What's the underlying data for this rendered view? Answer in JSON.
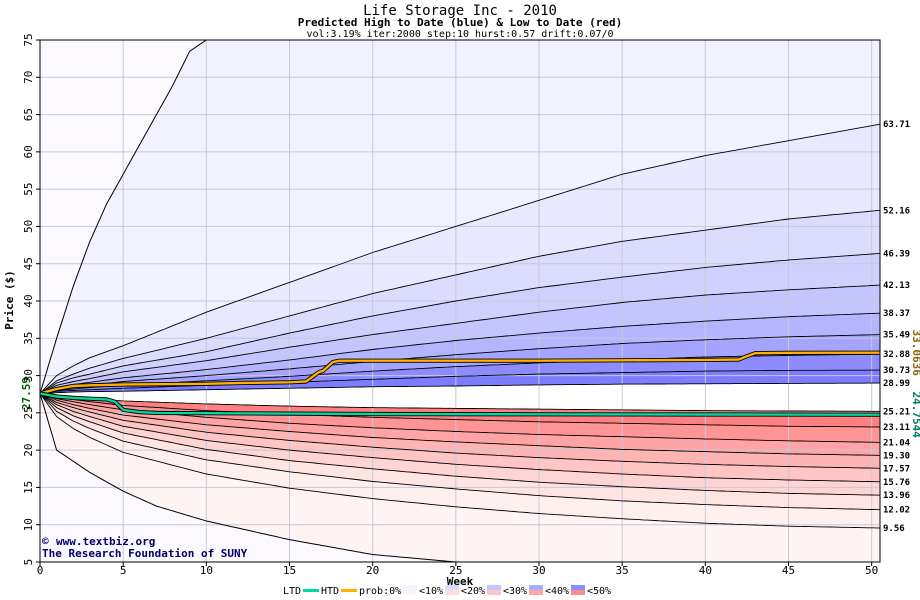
{
  "chart_data": {
    "type": "area",
    "title": "Life Storage Inc - 2010",
    "subtitle": "Predicted High to Date (blue) &  Low to Date (red)",
    "params": "vol:3.19% iter:2000 step:10 hurst:0.57 drift:0.07/0",
    "xlabel": "Week",
    "ylabel": "Price ($)",
    "xlim": [
      0,
      50.5
    ],
    "ylim": [
      5,
      75
    ],
    "xticks": [
      0,
      5,
      10,
      15,
      20,
      25,
      30,
      35,
      40,
      45,
      50
    ],
    "yticks": [
      5,
      10,
      15,
      20,
      25,
      30,
      35,
      40,
      45,
      50,
      55,
      60,
      65,
      70,
      75
    ],
    "grid": true,
    "start_price": 27.59,
    "start_label": "27.59",
    "x": [
      0,
      1,
      2,
      3,
      5,
      10,
      15,
      20,
      25,
      30,
      35,
      40,
      45,
      50.5
    ],
    "quantile_curves": [
      {
        "end": 63.71,
        "label": "63.71",
        "values": [
          27.59,
          30,
          31.3,
          32.4,
          34,
          38.5,
          42.5,
          46.5,
          50,
          53.5,
          57,
          59.5,
          61.5,
          63.71
        ]
      },
      {
        "end": 52.16,
        "label": "52.16",
        "values": [
          27.59,
          29.3,
          30.2,
          31,
          32.3,
          35,
          38,
          41,
          43.5,
          46,
          48,
          49.5,
          51,
          52.16
        ]
      },
      {
        "end": 46.39,
        "label": "46.39",
        "values": [
          27.59,
          29,
          29.7,
          30.2,
          31.3,
          33.2,
          35.7,
          38,
          40,
          41.8,
          43.2,
          44.5,
          45.5,
          46.39
        ]
      },
      {
        "end": 42.13,
        "label": "42.13",
        "values": [
          27.59,
          28.7,
          29.2,
          29.6,
          30.5,
          32,
          33.8,
          35.5,
          37,
          38.5,
          39.8,
          40.8,
          41.5,
          42.13
        ]
      },
      {
        "end": 38.37,
        "label": "38.37",
        "values": [
          27.59,
          28.4,
          28.8,
          29.1,
          29.7,
          30.8,
          32.1,
          33.5,
          34.7,
          35.7,
          36.6,
          37.3,
          37.9,
          38.37
        ]
      },
      {
        "end": 35.49,
        "label": "35.49",
        "values": [
          27.59,
          28.2,
          28.5,
          28.7,
          29.2,
          30,
          30.9,
          31.9,
          32.8,
          33.6,
          34.3,
          34.8,
          35.2,
          35.49
        ]
      },
      {
        "end": 32.88,
        "label": "32.88",
        "values": [
          27.59,
          28,
          28.2,
          28.4,
          28.7,
          29.3,
          29.9,
          30.6,
          31.2,
          31.7,
          32.1,
          32.5,
          32.7,
          32.88
        ]
      },
      {
        "end": 30.73,
        "label": "30.73",
        "values": [
          27.59,
          27.9,
          28,
          28.1,
          28.3,
          28.7,
          29.1,
          29.5,
          29.9,
          30.2,
          30.4,
          30.6,
          30.7,
          30.73
        ]
      },
      {
        "end": 28.99,
        "label": "28.99",
        "values": [
          27.59,
          27.7,
          27.8,
          27.85,
          27.9,
          28.1,
          28.3,
          28.5,
          28.6,
          28.75,
          28.85,
          28.9,
          28.95,
          28.99
        ]
      },
      {
        "end": 25.21,
        "label": "25.21",
        "values": [
          27.59,
          27.3,
          27.1,
          26.9,
          26.6,
          26.2,
          25.9,
          25.7,
          25.6,
          25.5,
          25.4,
          25.3,
          25.25,
          25.21
        ]
      },
      {
        "end": 23.11,
        "label": "23.11",
        "values": [
          27.59,
          27.1,
          26.8,
          26.5,
          26,
          25.3,
          24.8,
          24.4,
          24.1,
          23.8,
          23.6,
          23.4,
          23.2,
          23.11
        ]
      },
      {
        "end": 21.04,
        "label": "21.04",
        "values": [
          27.59,
          26.9,
          26.5,
          26.1,
          25.4,
          24.4,
          23.6,
          23,
          22.5,
          22.1,
          21.8,
          21.5,
          21.25,
          21.04
        ]
      },
      {
        "end": 19.3,
        "label": "19.30",
        "values": [
          27.59,
          26.7,
          26.1,
          25.6,
          24.7,
          23.4,
          22.5,
          21.7,
          21.1,
          20.6,
          20.1,
          19.8,
          19.5,
          19.3
        ]
      },
      {
        "end": 17.57,
        "label": "17.57",
        "values": [
          27.59,
          26.4,
          25.7,
          25.1,
          24,
          22.4,
          21.3,
          20.4,
          19.6,
          19,
          18.5,
          18.1,
          17.8,
          17.57
        ]
      },
      {
        "end": 15.76,
        "label": "15.76",
        "values": [
          27.59,
          26.1,
          25.2,
          24.5,
          23.2,
          21.3,
          20,
          19,
          18.1,
          17.4,
          16.8,
          16.3,
          16,
          15.76
        ]
      },
      {
        "end": 13.96,
        "label": "13.96",
        "values": [
          27.59,
          25.7,
          24.6,
          23.8,
          22.3,
          20.1,
          18.6,
          17.5,
          16.5,
          15.7,
          15.1,
          14.6,
          14.2,
          13.96
        ]
      },
      {
        "end": 12.02,
        "label": "12.02",
        "values": [
          27.59,
          25.2,
          23.9,
          22.9,
          21.2,
          18.7,
          17.1,
          15.8,
          14.8,
          13.9,
          13.2,
          12.7,
          12.3,
          12.02
        ]
      },
      {
        "end": 9.56,
        "label": "9.56",
        "values": [
          27.59,
          24.5,
          22.9,
          21.7,
          19.7,
          16.8,
          14.9,
          13.5,
          12.4,
          11.5,
          10.8,
          10.2,
          9.8,
          9.56
        ]
      }
    ],
    "outer_high": {
      "x": [
        0,
        1,
        2,
        3,
        4,
        5,
        6,
        7,
        8,
        9,
        10
      ],
      "values": [
        27.59,
        35,
        42,
        48,
        53,
        57,
        61,
        65,
        69,
        73.5,
        75
      ]
    },
    "outer_low": {
      "x": [
        0,
        1,
        2,
        3,
        5,
        7,
        10,
        15,
        20,
        25
      ],
      "values": [
        27.59,
        20,
        18.5,
        17,
        14.5,
        12.5,
        10.5,
        8,
        6,
        5
      ]
    },
    "series": [
      {
        "name": "HTD",
        "color": "#ffb000",
        "end": 33.0636,
        "end_label": "33.0636",
        "x": [
          0,
          0.5,
          1,
          1.5,
          2,
          3,
          4,
          5,
          8,
          10,
          12,
          15,
          16,
          16.8,
          17,
          17.6,
          18,
          20,
          25,
          30,
          35,
          40,
          42,
          42.5,
          43,
          45,
          50.5
        ],
        "values": [
          27.59,
          27.9,
          28.2,
          28.4,
          28.6,
          28.7,
          28.75,
          28.8,
          28.85,
          28.9,
          29,
          29.1,
          29.2,
          30.5,
          30.6,
          31.8,
          32,
          32,
          32,
          32,
          32.05,
          32.1,
          32.15,
          32.6,
          33,
          33.05,
          33.0636
        ]
      },
      {
        "name": "LTD",
        "color": "#00d8a0",
        "end": 24.7544,
        "end_label": "24.7544",
        "x": [
          0,
          1,
          2,
          3,
          4,
          4.5,
          5,
          6,
          7,
          10,
          15,
          20,
          30,
          40,
          50.5
        ],
        "values": [
          27.59,
          27.2,
          27,
          26.9,
          26.8,
          26.5,
          25.4,
          25.1,
          25,
          24.95,
          24.9,
          24.85,
          24.8,
          24.78,
          24.7544
        ]
      }
    ],
    "legend": {
      "position": "bottom",
      "ltd": "LTD",
      "htd": "HTD",
      "prob_prefix": "prob:0%",
      "items": [
        {
          "label": "<10%",
          "blue": "#f4f4ff",
          "red": "#fff4f4"
        },
        {
          "label": "<20%",
          "blue": "#dcdcff",
          "red": "#ffdcdc"
        },
        {
          "label": "<30%",
          "blue": "#c4c4ff",
          "red": "#ffc4c4"
        },
        {
          "label": "<40%",
          "blue": "#a8a8ff",
          "red": "#ffa8a8"
        },
        {
          "label": "<50%",
          "blue": "#8c8cff",
          "red": "#ff8c8c"
        }
      ]
    },
    "colors": {
      "blue_bands": [
        "#f4f4ff",
        "#e8e8ff",
        "#dcdcff",
        "#d0d0ff",
        "#c4c4ff",
        "#b4b4ff",
        "#a4a4ff",
        "#8c8cff",
        "#7c7cff"
      ],
      "red_bands": [
        "#fff8f8",
        "#fff0f0",
        "#ffe4e4",
        "#ffd4d4",
        "#ffc4c4",
        "#ffb4b4",
        "#ffa4a4",
        "#ff9494",
        "#ff8080"
      ],
      "htd_label": "#8b6508",
      "ltd_label": "#008060",
      "grid": "#c8c8d8"
    },
    "watermark": {
      "copyright": "©",
      "site": "www.textbiz.org",
      "org": "The Research Foundation of SUNY"
    }
  }
}
